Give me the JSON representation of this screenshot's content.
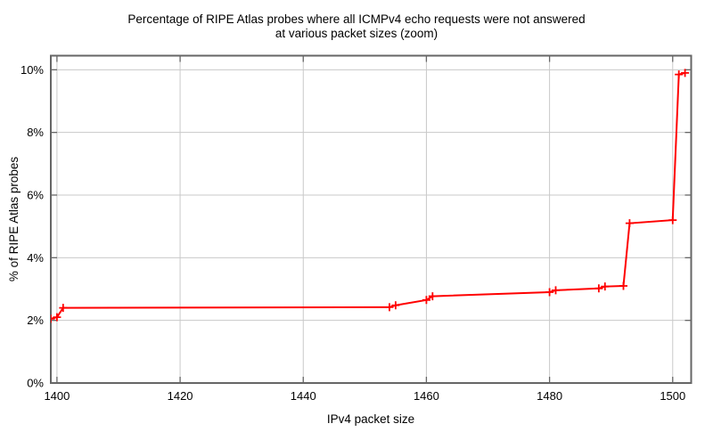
{
  "chart_data": {
    "type": "line",
    "title_line1": "Percentage of RIPE Atlas probes where all ICMPv4 echo requests were not answered",
    "title_line2": "at various packet sizes (zoom)",
    "xlabel": "IPv4 packet size",
    "ylabel": "% of RIPE Atlas probes",
    "xlim": [
      1399,
      1503
    ],
    "ylim": [
      0,
      10.45
    ],
    "x_ticks": [
      1400,
      1420,
      1440,
      1460,
      1480,
      1500
    ],
    "y_ticks": [
      0,
      2,
      4,
      6,
      8,
      10
    ],
    "y_tick_suffix": "%",
    "grid": true,
    "legend": "none",
    "series": [
      {
        "color": "#ff0000",
        "marker": "plus",
        "points": [
          [
            1399,
            2.05
          ],
          [
            1400,
            2.1
          ],
          [
            1401,
            2.4
          ],
          [
            1454,
            2.42
          ],
          [
            1455,
            2.48
          ],
          [
            1460,
            2.65
          ],
          [
            1461,
            2.77
          ],
          [
            1480,
            2.9
          ],
          [
            1481,
            2.96
          ],
          [
            1488,
            3.02
          ],
          [
            1489,
            3.08
          ],
          [
            1492,
            3.1
          ],
          [
            1493,
            5.1
          ],
          [
            1500,
            5.2
          ],
          [
            1501,
            9.85
          ],
          [
            1502,
            9.9
          ]
        ]
      }
    ],
    "colors": {
      "background": "#ffffff",
      "text": "#000000",
      "grid": "#c9c9c9",
      "border": "#666666",
      "line": "#ff0000"
    }
  }
}
